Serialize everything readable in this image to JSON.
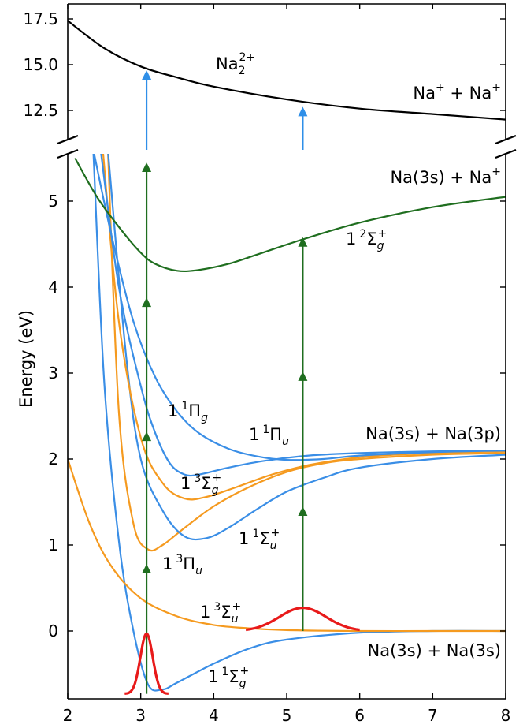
{
  "chart_data": {
    "type": "line",
    "title": "",
    "xlabel": "",
    "ylabel": "Energy (eV)",
    "xlim": [
      2,
      8
    ],
    "ylim_lower": [
      -0.75,
      5.5
    ],
    "ylim_upper": [
      11.0,
      18.0
    ],
    "axis_break": true,
    "x_ticks": [
      "2",
      "3",
      "4",
      "5",
      "6",
      "7",
      "8"
    ],
    "y_ticks_lower": [
      "0",
      "1",
      "2",
      "3",
      "4",
      "5"
    ],
    "y_ticks_upper": [
      "12.5",
      "15.0",
      "17.5"
    ],
    "grid": false,
    "legend": "none",
    "colors": {
      "singlet": "#3a8ee6",
      "triplet": "#f59a1f",
      "ion": "#1f6e1f",
      "dication": "#000000",
      "wavepacket": "#e81a1a",
      "ionization_arrow": "#2f8fe8",
      "photon_arrow": "#1f6e1f"
    },
    "series": [
      {
        "name": "1 1Σg+",
        "color": "#3a8ee6",
        "x": [
          2.35,
          2.5,
          2.7,
          2.9,
          3.1,
          3.3,
          3.5,
          4.0,
          4.5,
          5.0,
          6.0,
          7.0,
          8.0
        ],
        "y": [
          5.6,
          2.9,
          1.05,
          0.0,
          -0.62,
          -0.68,
          -0.6,
          -0.38,
          -0.2,
          -0.1,
          -0.02,
          0.0,
          0.0
        ]
      },
      {
        "name": "1 3Σu+",
        "color": "#f59a1f",
        "x": [
          2.0,
          2.3,
          2.6,
          3.0,
          3.5,
          4.0,
          4.5,
          5.0,
          6.0,
          7.0,
          8.0
        ],
        "y": [
          2.0,
          1.25,
          0.75,
          0.38,
          0.17,
          0.07,
          0.03,
          0.01,
          0.0,
          0.0,
          0.0
        ]
      },
      {
        "name": "1 3Πu",
        "color": "#f59a1f",
        "x": [
          2.55,
          2.7,
          2.9,
          3.1,
          3.3,
          3.6,
          4.0,
          4.5,
          5.0,
          5.5,
          6.0,
          7.0,
          8.0
        ],
        "y": [
          5.6,
          2.55,
          1.25,
          0.95,
          1.0,
          1.2,
          1.45,
          1.68,
          1.85,
          1.95,
          2.0,
          2.05,
          2.07
        ]
      },
      {
        "name": "1 1Σu+",
        "color": "#3a8ee6",
        "x": [
          2.55,
          2.8,
          3.0,
          3.3,
          3.6,
          3.9,
          4.2,
          4.6,
          5.0,
          5.5,
          6.0,
          7.0,
          8.0
        ],
        "y": [
          5.6,
          3.2,
          2.0,
          1.4,
          1.1,
          1.08,
          1.2,
          1.42,
          1.62,
          1.78,
          1.9,
          2.0,
          2.05
        ]
      },
      {
        "name": "1 3Σg+",
        "color": "#f59a1f",
        "x": [
          2.48,
          2.7,
          3.0,
          3.3,
          3.6,
          3.9,
          4.3,
          4.8,
          5.3,
          6.0,
          7.0,
          8.0
        ],
        "y": [
          5.6,
          3.6,
          2.25,
          1.72,
          1.54,
          1.56,
          1.67,
          1.82,
          1.93,
          2.02,
          2.07,
          2.09
        ]
      },
      {
        "name": "1 1Πg",
        "color": "#3a8ee6",
        "x": [
          2.45,
          2.7,
          3.0,
          3.2,
          3.4,
          3.6,
          3.8,
          4.2,
          4.7,
          5.3,
          6.0,
          7.0,
          8.0
        ],
        "y": [
          5.6,
          4.0,
          2.85,
          2.3,
          1.95,
          1.82,
          1.82,
          1.9,
          1.98,
          2.04,
          2.07,
          2.09,
          2.1
        ]
      },
      {
        "name": "1 1Πu",
        "color": "#3a8ee6",
        "x": [
          2.35,
          2.6,
          2.9,
          3.2,
          3.5,
          3.8,
          4.2,
          4.6,
          5.0,
          5.5,
          6.0,
          7.0,
          8.0
        ],
        "y": [
          5.6,
          4.6,
          3.6,
          2.95,
          2.55,
          2.3,
          2.12,
          2.03,
          1.99,
          2.0,
          2.04,
          2.08,
          2.1
        ]
      },
      {
        "name": "1 2Σg+",
        "color": "#1f6e1f",
        "x": [
          2.1,
          2.4,
          2.7,
          3.0,
          3.2,
          3.5,
          3.8,
          4.2,
          4.6,
          5.2,
          6.0,
          7.0,
          8.0
        ],
        "y": [
          5.5,
          5.05,
          4.7,
          4.4,
          4.27,
          4.19,
          4.2,
          4.27,
          4.38,
          4.55,
          4.75,
          4.93,
          5.05
        ]
      },
      {
        "name": "Na2 2+",
        "color": "#000000",
        "x": [
          2.0,
          2.5,
          3.0,
          3.5,
          4.0,
          5.0,
          6.0,
          7.0,
          8.0
        ],
        "y": [
          17.4,
          15.9,
          14.9,
          14.3,
          13.8,
          13.1,
          12.6,
          12.3,
          12.0
        ]
      }
    ],
    "wavepackets": [
      {
        "center_x": 3.08,
        "peak_y": -0.03,
        "base_y": -0.73
      },
      {
        "center_x": 5.22,
        "peak_y": 0.27,
        "base_y": 0.0
      }
    ],
    "excitations": [
      {
        "x": 3.08,
        "photon_arrow_heads_eV": [
          0.78,
          2.32,
          3.88,
          5.45
        ],
        "ionization_arrow_top_eV": 14.7
      },
      {
        "x": 5.22,
        "photon_arrow_heads_eV": [
          1.45,
          3.02,
          4.58
        ],
        "ionization_arrow_top_eV": 12.7
      }
    ],
    "labels": {
      "x1Sg": {
        "text": "1",
        "sup": "1",
        "main": "Σ",
        "sub": "g",
        "sup2": "+"
      },
      "a3Su": {
        "text": "1",
        "sup": "3",
        "main": "Σ",
        "sub": "u",
        "sup2": "+"
      },
      "b3Pu": {
        "text": "1",
        "sup": "3",
        "main": "Π",
        "sub": "u",
        "sup2": ""
      },
      "A1Su": {
        "text": "1",
        "sup": "1",
        "main": "Σ",
        "sub": "u",
        "sup2": "+"
      },
      "c3Sg": {
        "text": "1",
        "sup": "3",
        "main": "Σ",
        "sub": "g",
        "sup2": "+"
      },
      "d1Pg": {
        "text": "1",
        "sup": "1",
        "main": "Π",
        "sub": "g",
        "sup2": ""
      },
      "B1Pu": {
        "text": "1",
        "sup": "1",
        "main": "Π",
        "sub": "u",
        "sup2": ""
      },
      "ion2Sg": {
        "text": "1",
        "sup": "2",
        "main": "Σ",
        "sub": "g",
        "sup2": "+"
      },
      "dication": {
        "text": "Na",
        "sub": "2",
        "sup": "2+"
      }
    },
    "asymptotes": {
      "ground": "Na(3s) + Na(3s)",
      "excited": "Na(3s) + Na(3p)",
      "ion": "Na(3s) + Na",
      "ion_sup": "+",
      "dication_a": "Na",
      "dication_a_sup": "+",
      "dication_plus": " + Na",
      "dication_b_sup": "+"
    }
  }
}
